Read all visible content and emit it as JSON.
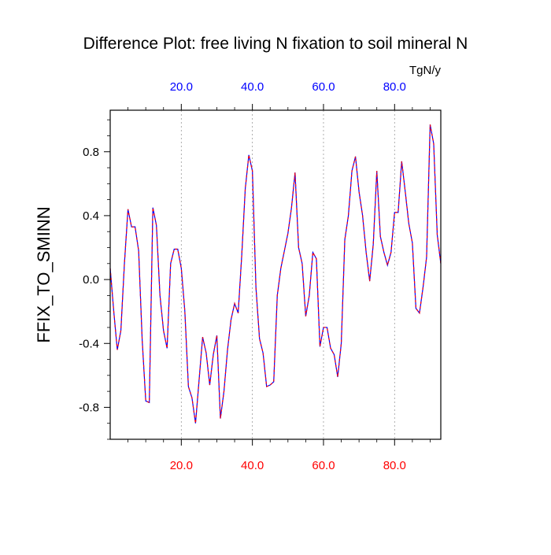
{
  "chart_data": {
    "type": "line",
    "title": "Difference Plot: free living N fixation to soil mineral N",
    "units": "TgN/y",
    "ylabel": "FFIX_TO_SMINN",
    "xlabel": "",
    "xlim": [
      0,
      93
    ],
    "ylim": [
      -1.0,
      1.06
    ],
    "x_ticks": [
      20,
      40,
      60,
      80
    ],
    "x_tick_labels": [
      "20.0",
      "40.0",
      "60.0",
      "80.0"
    ],
    "y_ticks": [
      -0.8,
      -0.4,
      0.0,
      0.4,
      0.8
    ],
    "y_tick_labels": [
      "-0.8",
      "-0.4",
      "0.0",
      "0.4",
      "0.8"
    ],
    "grid": "vertical-dashed",
    "colors": {
      "bottom_axis": "#ff0000",
      "top_axis": "#0000ff",
      "series_a": "#0000ff",
      "series_b": "#ff0000"
    },
    "series": [
      {
        "x": [
          0,
          1,
          2,
          3,
          4,
          5,
          6,
          7,
          8,
          9,
          10,
          11,
          12,
          13,
          14,
          15,
          16,
          17,
          18,
          19,
          20,
          21,
          22,
          23,
          24,
          25,
          26,
          27,
          28,
          29,
          30,
          31,
          32,
          33,
          34,
          35,
          36,
          37,
          38,
          39,
          40,
          41,
          42,
          43,
          44,
          45,
          46,
          47,
          48,
          49,
          50,
          51,
          52,
          53,
          54,
          55,
          56,
          57,
          58,
          59,
          60,
          61,
          62,
          63,
          64,
          65,
          66,
          67,
          68,
          69,
          70,
          71,
          72,
          73,
          74,
          75,
          76,
          77,
          78,
          79,
          80,
          81,
          82,
          83,
          84,
          85,
          86,
          87,
          88,
          89,
          90,
          91,
          92,
          93
        ],
        "values": [
          0.07,
          -0.2,
          -0.44,
          -0.32,
          0.1,
          0.44,
          0.33,
          0.33,
          0.18,
          -0.38,
          -0.76,
          -0.77,
          0.45,
          0.34,
          -0.1,
          -0.32,
          -0.43,
          0.1,
          0.19,
          0.19,
          0.07,
          -0.2,
          -0.67,
          -0.74,
          -0.9,
          -0.63,
          -0.36,
          -0.46,
          -0.66,
          -0.47,
          -0.35,
          -0.87,
          -0.7,
          -0.44,
          -0.25,
          -0.15,
          -0.21,
          0.15,
          0.57,
          0.78,
          0.68,
          -0.05,
          -0.37,
          -0.46,
          -0.67,
          -0.66,
          -0.64,
          -0.1,
          0.07,
          0.18,
          0.29,
          0.45,
          0.67,
          0.2,
          0.1,
          -0.23,
          -0.1,
          0.17,
          0.13,
          -0.42,
          -0.3,
          -0.3,
          -0.43,
          -0.47,
          -0.61,
          -0.4,
          0.25,
          0.4,
          0.68,
          0.77,
          0.55,
          0.4,
          0.17,
          -0.01,
          0.22,
          0.68,
          0.27,
          0.17,
          0.09,
          0.17,
          0.42,
          0.42,
          0.74,
          0.55,
          0.35,
          0.23,
          -0.18,
          -0.21,
          -0.05,
          0.14,
          0.97,
          0.85,
          0.28,
          0.1
        ]
      }
    ]
  }
}
